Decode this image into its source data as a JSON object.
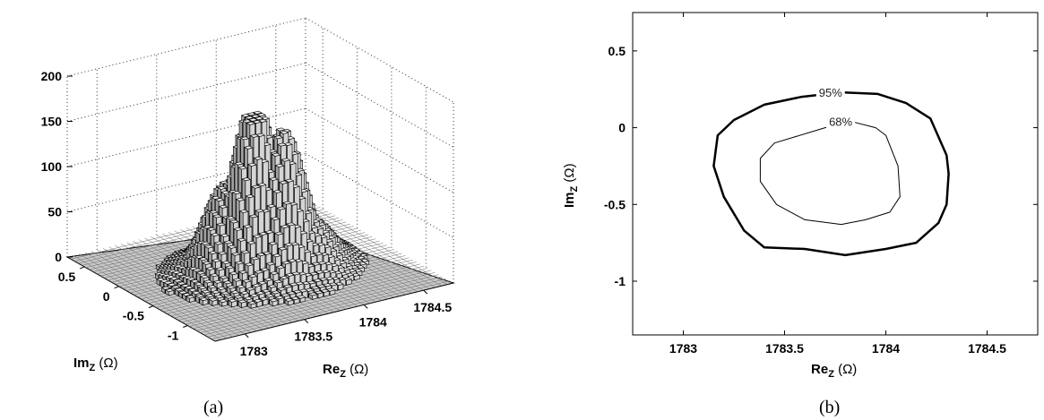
{
  "panel_labels": [
    "(a)",
    "(b)"
  ],
  "chart_data": [
    {
      "type": "3d-bar-histogram",
      "panel": "(a)",
      "xlabel": {
        "main": "Re",
        "sub": "Z",
        "unit": " (Ω)"
      },
      "ylabel": {
        "main": "Im",
        "sub": "Z",
        "unit": " (Ω)"
      },
      "x_ticks": [
        "1783",
        "1783.5",
        "1784",
        "1784.5"
      ],
      "y_ticks": [
        "0.5",
        "0",
        "-0.5",
        "-1"
      ],
      "z_ticks": [
        "0",
        "50",
        "100",
        "150",
        "200"
      ],
      "zlim": [
        0,
        200
      ],
      "x_range": [
        1782.75,
        1784.75
      ],
      "y_range": [
        -1.4,
        0.75
      ],
      "peak_count": 170,
      "peak_location": {
        "x": 1783.75,
        "y": -0.35
      },
      "grid": true
    },
    {
      "type": "contour",
      "panel": "(b)",
      "xlabel": {
        "main": "Re",
        "sub": "Z",
        "unit": " (Ω)"
      },
      "ylabel": {
        "main": "Im",
        "sub": "Z",
        "unit": " (Ω)"
      },
      "xlim": [
        1782.75,
        1784.75
      ],
      "ylim": [
        -1.35,
        0.75
      ],
      "x_ticks": [
        "1783",
        "1783.5",
        "1784",
        "1784.5"
      ],
      "y_ticks": [
        "0.5",
        "0",
        "-0.5",
        "-1"
      ],
      "contours": [
        {
          "label": "95%",
          "points": [
            [
              1783.78,
              0.23
            ],
            [
              1783.96,
              0.22
            ],
            [
              1784.1,
              0.16
            ],
            [
              1784.22,
              0.06
            ],
            [
              1784.3,
              -0.18
            ],
            [
              1784.31,
              -0.3
            ],
            [
              1784.3,
              -0.5
            ],
            [
              1784.26,
              -0.62
            ],
            [
              1784.15,
              -0.75
            ],
            [
              1784.0,
              -0.79
            ],
            [
              1783.8,
              -0.83
            ],
            [
              1783.6,
              -0.79
            ],
            [
              1783.4,
              -0.78
            ],
            [
              1783.3,
              -0.67
            ],
            [
              1783.2,
              -0.45
            ],
            [
              1783.15,
              -0.25
            ],
            [
              1783.17,
              -0.05
            ],
            [
              1783.25,
              0.05
            ],
            [
              1783.4,
              0.15
            ],
            [
              1783.58,
              0.2
            ],
            [
              1783.78,
              0.23
            ]
          ]
        },
        {
          "label": "68%",
          "points": [
            [
              1783.83,
              0.04
            ],
            [
              1783.95,
              0.0
            ],
            [
              1784.0,
              -0.05
            ],
            [
              1784.06,
              -0.25
            ],
            [
              1784.07,
              -0.45
            ],
            [
              1784.02,
              -0.55
            ],
            [
              1783.9,
              -0.6
            ],
            [
              1783.78,
              -0.63
            ],
            [
              1783.6,
              -0.6
            ],
            [
              1783.46,
              -0.5
            ],
            [
              1783.38,
              -0.35
            ],
            [
              1783.38,
              -0.2
            ],
            [
              1783.45,
              -0.1
            ],
            [
              1783.55,
              -0.06
            ],
            [
              1783.7,
              0.0
            ],
            [
              1783.83,
              0.04
            ]
          ]
        }
      ]
    }
  ]
}
